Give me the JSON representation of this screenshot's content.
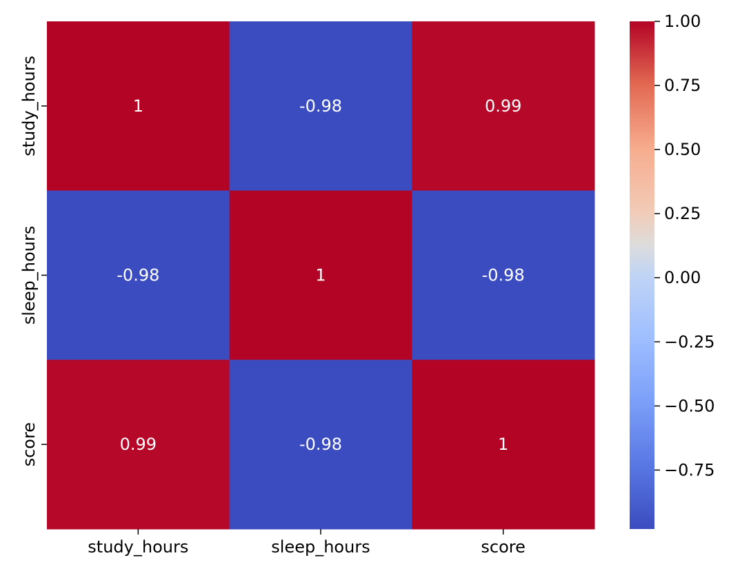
{
  "chart_data": {
    "type": "heatmap",
    "title": "",
    "xlabel": "",
    "ylabel": "",
    "x_categories": [
      "study_hours",
      "sleep_hours",
      "score"
    ],
    "y_categories": [
      "study_hours",
      "sleep_hours",
      "score"
    ],
    "values": [
      [
        1.0,
        -0.98,
        0.99
      ],
      [
        -0.98,
        1.0,
        -0.98
      ],
      [
        0.99,
        -0.98,
        1.0
      ]
    ],
    "annotations": [
      [
        "1",
        "-0.98",
        "0.99"
      ],
      [
        "-0.98",
        "1",
        "-0.98"
      ],
      [
        "0.99",
        "-0.98",
        "1"
      ]
    ],
    "colormap": "coolwarm",
    "colorbar": {
      "min": -0.98,
      "max": 1.0,
      "ticks": [
        1.0,
        0.75,
        0.5,
        0.25,
        0.0,
        -0.25,
        -0.5,
        -0.75
      ],
      "tick_labels": [
        "1.00",
        "0.75",
        "0.50",
        "0.25",
        "0.00",
        "−0.25",
        "−0.50",
        "−0.75"
      ],
      "placement": "right"
    },
    "grid": false,
    "colors": {
      "high": "#b40426",
      "low": "#3b4cc0",
      "mid": "#dddddd"
    }
  }
}
